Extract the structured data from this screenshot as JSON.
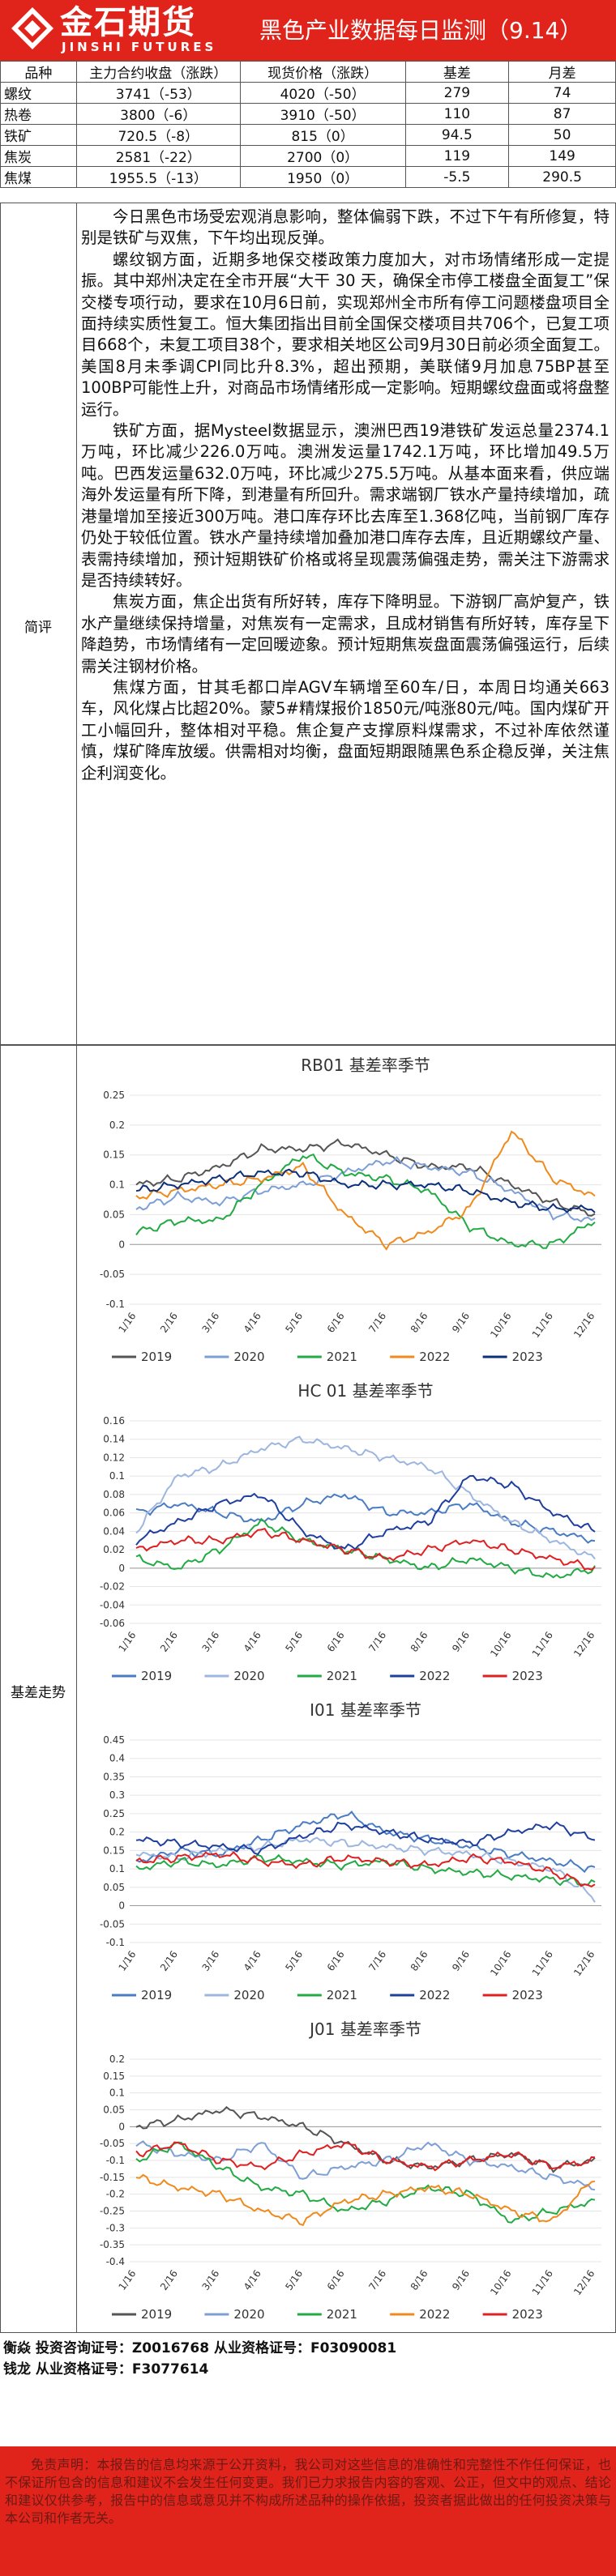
{
  "header": {
    "logo_cn": "金石期货",
    "logo_en": "JINSHI FUTURES",
    "title": "黑色产业数据每日监测（9.14）"
  },
  "quote_table": {
    "columns": [
      "品种",
      "主力合约收盘（涨跌）",
      "现货价格（涨跌）",
      "基差",
      "月差"
    ],
    "rows": [
      {
        "name": "螺纹",
        "close": "3741（-53）",
        "spot": "4020（-50）",
        "basis": "279",
        "spread": "74"
      },
      {
        "name": "热卷",
        "close": "3800（-6）",
        "spot": "3910（-50）",
        "basis": "110",
        "spread": "87"
      },
      {
        "name": "铁矿",
        "close": "720.5（-8）",
        "spot": "815（0）",
        "basis": "94.5",
        "spread": "50"
      },
      {
        "name": "焦炭",
        "close": "2581（-22）",
        "spot": "2700（0）",
        "basis": "119",
        "spread": "149"
      },
      {
        "name": "焦煤",
        "close": "1955.5（-13）",
        "spot": "1950（0）",
        "basis": "-5.5",
        "spread": "290.5"
      }
    ]
  },
  "commentary": {
    "label": "简评",
    "paragraphs": [
      "今日黑色市场受宏观消息影响，整体偏弱下跌，不过下午有所修复，特别是铁矿与双焦，下午均出现反弹。",
      "螺纹钢方面，近期多地保交楼政策力度加大，对市场情绪形成一定提振。其中郑州决定在全市开展“大干 30 天，确保全市停工楼盘全面复工”保交楼专项行动，要求在10月6日前，实现郑州全市所有停工问题楼盘项目全面持续实质性复工。恒大集团指出目前全国保交楼项目共706个，已复工项目668个，未复工项目38个，要求相关地区公司9月30日前必须全面复工。美国8月未季调CPI同比升8.3%，超出预期，美联储9月加息75BP甚至100BP可能性上升，对商品市场情绪形成一定影响。短期螺纹盘面或将盘整运行。",
      "铁矿方面，据Mysteel数据显示，澳洲巴西19港铁矿发运总量2374.1万吨，环比减少226.0万吨。澳洲发运量1742.1万吨，环比增加49.5万吨。巴西发运量632.0万吨，环比减少275.5万吨。从基本面来看，供应端海外发运量有所下降，到港量有所回升。需求端钢厂铁水产量持续增加，疏港量增加至接近300万吨。港口库存环比去库至1.368亿吨，当前钢厂库存仍处于较低位置。铁水产量持续增加叠加港口库存去库，且近期螺纹产量、表需持续增加，预计短期铁矿价格或将呈现震荡偏强走势，需关注下游需求是否持续转好。",
      "焦炭方面，焦企出货有所好转，库存下降明显。下游钢厂高炉复产，铁水产量继续保持增量，对焦炭有一定需求，且成材销售有所好转，库存呈下降趋势，市场情绪有一定回暖迹象。预计短期焦炭盘面震荡偏强运行，后续需关注钢材价格。",
      "焦煤方面，甘其毛都口岸AGV车辆增至60车/日，本周日均通关663车，风化煤占比超20%。蒙5#精煤报价1850元/吨涨80元/吨。国内煤矿开工小幅回升，整体相对平稳。焦企复产支撑原料煤需求，不过补库依然谨慎，煤矿降库放缓。供需相对均衡，盘面短期跟随黑色系企稳反弹，关注焦企利润变化。"
    ]
  },
  "basis_section_label": "基差走势",
  "chart_data": [
    {
      "type": "line",
      "title": "RB01 基差率季节",
      "categories": [
        "1/16",
        "2/16",
        "3/16",
        "4/16",
        "5/16",
        "6/16",
        "7/16",
        "8/16",
        "9/16",
        "10/16",
        "11/16",
        "12/16"
      ],
      "yticks": [
        "0.25",
        "0.2",
        "0.15",
        "0.1",
        "0.05",
        "0",
        "-0.05",
        "-0.1"
      ],
      "ylim": [
        -0.1,
        0.25
      ],
      "series": [
        {
          "name": "2019",
          "color": "#555555",
          "values": [
            0.1,
            0.11,
            0.13,
            0.16,
            0.16,
            0.17,
            0.15,
            0.13,
            0.13,
            0.1,
            0.07,
            0.05
          ]
        },
        {
          "name": "2020",
          "color": "#7d9fd6",
          "values": [
            0.06,
            0.08,
            0.07,
            0.09,
            0.1,
            0.12,
            0.14,
            0.13,
            0.12,
            0.09,
            0.05,
            0.04
          ]
        },
        {
          "name": "2021",
          "color": "#22aa44",
          "values": [
            0.02,
            0.04,
            0.04,
            0.1,
            0.15,
            0.12,
            0.11,
            0.09,
            0.03,
            0.0,
            0.0,
            0.04
          ]
        },
        {
          "name": "2022",
          "color": "#f08a1c",
          "values": [
            0.08,
            0.09,
            0.1,
            0.11,
            0.13,
            0.05,
            0.0,
            0.02,
            0.06,
            0.19,
            0.11,
            0.08
          ]
        },
        {
          "name": "2023",
          "color": "#0b2f7a",
          "values": [
            0.09,
            0.1,
            0.11,
            0.12,
            0.12,
            0.1,
            0.1,
            0.1,
            0.09,
            0.07,
            0.06,
            0.06
          ]
        }
      ]
    },
    {
      "type": "line",
      "title": "HC 01 基差率季节",
      "categories": [
        "1/16",
        "2/16",
        "3/16",
        "4/16",
        "5/16",
        "6/16",
        "7/16",
        "8/16",
        "9/16",
        "10/16",
        "11/16",
        "12/16"
      ],
      "yticks": [
        "0.16",
        "0.14",
        "0.12",
        "0.1",
        "0.08",
        "0.06",
        "0.04",
        "0.02",
        "0",
        "-0.02",
        "-0.04",
        "-0.06"
      ],
      "ylim": [
        -0.06,
        0.16
      ],
      "series": [
        {
          "name": "2019",
          "color": "#4a7cc4",
          "values": [
            0.06,
            0.07,
            0.06,
            0.05,
            0.07,
            0.08,
            0.06,
            0.06,
            0.07,
            0.05,
            0.04,
            0.03
          ]
        },
        {
          "name": "2020",
          "color": "#9db6e0",
          "values": [
            0.04,
            0.1,
            0.11,
            0.13,
            0.14,
            0.13,
            0.12,
            0.11,
            0.08,
            0.05,
            0.03,
            0.01
          ]
        },
        {
          "name": "2021",
          "color": "#22aa44",
          "values": [
            0.01,
            0.0,
            0.02,
            0.05,
            0.03,
            0.02,
            0.01,
            0.0,
            0.01,
            0.0,
            -0.01,
            0.0
          ]
        },
        {
          "name": "2022",
          "color": "#1f3f9e",
          "values": [
            0.03,
            0.05,
            0.07,
            0.08,
            0.04,
            0.02,
            0.04,
            0.05,
            0.1,
            0.09,
            0.06,
            0.04
          ]
        },
        {
          "name": "2023",
          "color": "#e02020",
          "values": [
            0.02,
            0.03,
            0.03,
            0.04,
            0.03,
            0.02,
            0.01,
            0.02,
            0.03,
            0.02,
            0.01,
            0.0
          ]
        }
      ]
    },
    {
      "type": "line",
      "title": "I01 基差率季节",
      "categories": [
        "1/16",
        "2/16",
        "3/16",
        "4/16",
        "5/16",
        "6/16",
        "7/16",
        "8/16",
        "9/16",
        "10/16",
        "11/16",
        "12/16"
      ],
      "yticks": [
        "0.45",
        "0.4",
        "0.35",
        "0.3",
        "0.25",
        "0.2",
        "0.15",
        "0.1",
        "0.05",
        "0",
        "-0.05",
        "-0.1"
      ],
      "ylim": [
        -0.1,
        0.45
      ],
      "series": [
        {
          "name": "2019",
          "color": "#4a7cc4",
          "values": [
            0.12,
            0.15,
            0.14,
            0.18,
            0.22,
            0.25,
            0.2,
            0.18,
            0.16,
            0.14,
            0.12,
            0.1
          ]
        },
        {
          "name": "2020",
          "color": "#9db6e0",
          "values": [
            0.14,
            0.13,
            0.15,
            0.16,
            0.18,
            0.17,
            0.16,
            0.15,
            0.14,
            0.12,
            0.1,
            0.02
          ]
        },
        {
          "name": "2021",
          "color": "#22aa44",
          "values": [
            0.1,
            0.12,
            0.11,
            0.13,
            0.12,
            0.11,
            0.12,
            0.1,
            0.09,
            0.08,
            0.07,
            0.06
          ]
        },
        {
          "name": "2022",
          "color": "#1f3f9e",
          "values": [
            0.18,
            0.17,
            0.16,
            0.15,
            0.19,
            0.22,
            0.2,
            0.18,
            0.17,
            0.2,
            0.22,
            0.18
          ]
        },
        {
          "name": "2023",
          "color": "#e02020",
          "values": [
            0.12,
            0.13,
            0.14,
            0.12,
            0.11,
            0.13,
            0.12,
            0.11,
            0.13,
            0.12,
            0.09,
            0.05
          ]
        }
      ]
    },
    {
      "type": "line",
      "title": "J01 基差率季节",
      "categories": [
        "1/16",
        "2/16",
        "3/16",
        "4/16",
        "5/16",
        "6/16",
        "7/16",
        "8/16",
        "9/16",
        "10/16",
        "11/16",
        "12/16"
      ],
      "yticks": [
        "0.2",
        "0.15",
        "0.1",
        "0.05",
        "0",
        "-0.05",
        "-0.1",
        "-0.15",
        "-0.2",
        "-0.25",
        "-0.3",
        "-0.35",
        "-0.4"
      ],
      "ylim": [
        -0.4,
        0.2
      ],
      "series": [
        {
          "name": "2019",
          "color": "#555555",
          "values": [
            0.0,
            0.02,
            0.05,
            0.03,
            0.0,
            -0.05,
            -0.1,
            -0.12,
            -0.1,
            -0.08,
            -0.12,
            -0.1
          ]
        },
        {
          "name": "2020",
          "color": "#7d9fd6",
          "values": [
            -0.05,
            -0.08,
            -0.1,
            -0.05,
            -0.15,
            -0.12,
            -0.1,
            -0.05,
            -0.1,
            -0.12,
            -0.15,
            -0.18
          ]
        },
        {
          "name": "2021",
          "color": "#22aa44",
          "values": [
            -0.1,
            -0.05,
            -0.12,
            -0.18,
            -0.2,
            -0.25,
            -0.22,
            -0.18,
            -0.2,
            -0.28,
            -0.25,
            -0.22
          ]
        },
        {
          "name": "2022",
          "color": "#f08a1c",
          "values": [
            -0.15,
            -0.18,
            -0.2,
            -0.25,
            -0.28,
            -0.22,
            -0.2,
            -0.18,
            -0.2,
            -0.25,
            -0.28,
            -0.15
          ]
        },
        {
          "name": "2023",
          "color": "#e02020",
          "values": [
            -0.08,
            -0.05,
            -0.1,
            -0.12,
            -0.08,
            -0.05,
            -0.1,
            -0.12,
            -0.1,
            -0.08,
            -0.12,
            -0.1
          ]
        }
      ]
    }
  ],
  "contacts": {
    "line1": "衡焱 投资咨询证号：Z0016768 从业资格证号：F03090081",
    "line2": "钱龙 从业资格证号：F3077614"
  },
  "disclaimer": "免责声明：本报告的信息均来源于公开资料，我公司对这些信息的准确性和完整性不作任何保证，也不保证所包含的信息和建议不会发生任何变更。我们已力求报告内容的客观、公正，但文中的观点、结论和建议仅供参考，报告中的信息或意见并不构成所述品种的操作依据，投资者据此做出的任何投资决策与本公司和作者无关。",
  "colors": {
    "brand_red": "#e0241b"
  }
}
